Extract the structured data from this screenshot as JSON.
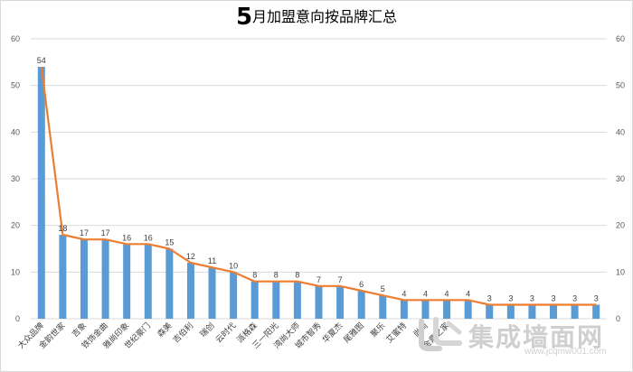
{
  "title_prefix": "5",
  "title_rest": "月加盟意向按品牌汇总",
  "colors": {
    "bar": "#5b9bd5",
    "line": "#ed7d31",
    "grid": "#d9d9d9"
  },
  "watermark": {
    "brand": "集成墙面网",
    "url": "www.jcqmw001.com"
  },
  "chart_data": {
    "type": "bar",
    "title": "5月加盟意向按品牌汇总",
    "ylim": [
      0,
      60
    ],
    "y_ticks": [
      0,
      10,
      20,
      30,
      40,
      50,
      60
    ],
    "right_axis_ticks": [
      0,
      10,
      20,
      30,
      40,
      50,
      60
    ],
    "grid": true,
    "legend": "none",
    "categories": [
      "大众品牌",
      "金韵世家",
      "吉象",
      "铁饰金曲",
      "雅尚印象",
      "世纪豪门",
      "森美",
      "吉伯利",
      "瑞创",
      "云时代",
      "派格森",
      "三一阳光",
      "湾尚大师",
      "城市智秀",
      "华夏杰",
      "尾雅图",
      "聚乐",
      "艾蜜特",
      "尚尚",
      "金鼎之家",
      "",
      "",
      "",
      "",
      "",
      "",
      ""
    ],
    "series": [
      {
        "type": "bar",
        "values": [
          54,
          18,
          17,
          17,
          16,
          16,
          15,
          12,
          11,
          10,
          8,
          8,
          8,
          7,
          7,
          6,
          5,
          4,
          4,
          4,
          4,
          3,
          3,
          3,
          3,
          3,
          3
        ]
      },
      {
        "type": "line",
        "values": [
          54,
          18,
          17,
          17,
          16,
          16,
          15,
          12,
          11,
          10,
          8,
          8,
          8,
          7,
          7,
          6,
          5,
          4,
          4,
          4,
          4,
          3,
          3,
          3,
          3,
          3,
          3
        ]
      }
    ],
    "data_labels": [
      "54",
      "18",
      "17",
      "17",
      "16",
      "16",
      "15",
      "12",
      "11",
      "10",
      "8",
      "8",
      "8",
      "7",
      "7",
      "6",
      "5",
      "4",
      "4",
      "4",
      "4",
      "3",
      "3",
      "3",
      "3",
      "3",
      "3"
    ]
  }
}
